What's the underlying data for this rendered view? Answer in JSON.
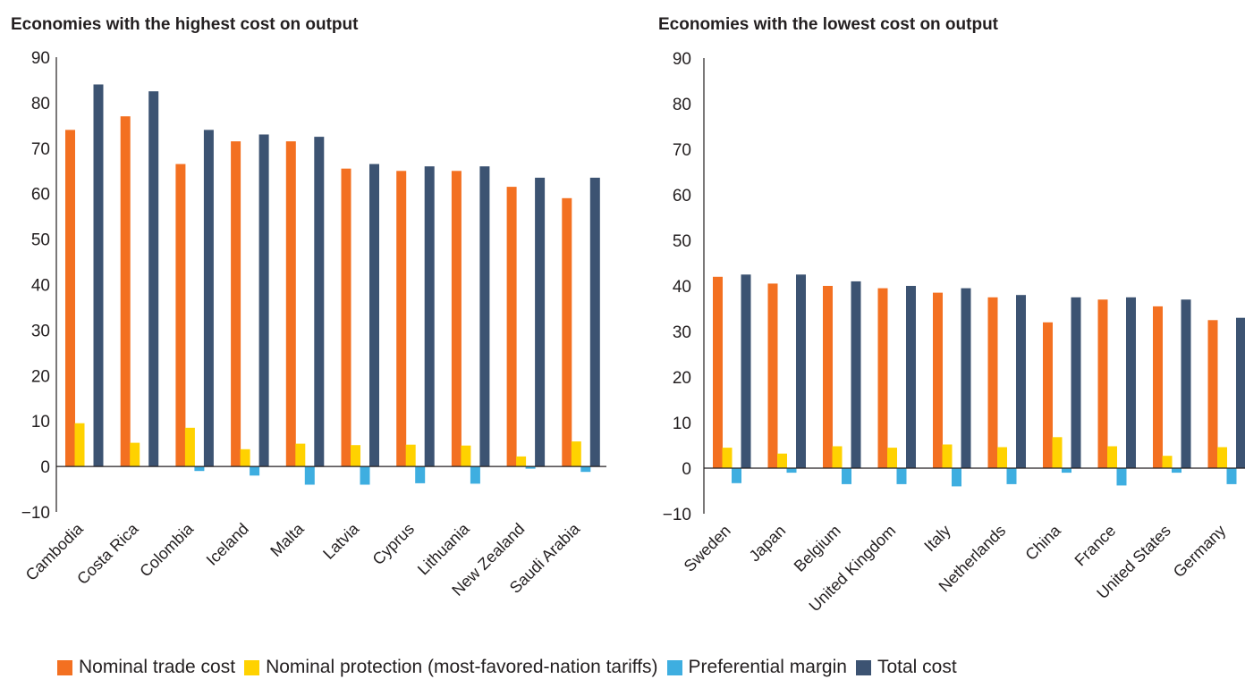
{
  "legend": [
    {
      "label": "Nominal trade cost",
      "color": "#f37021"
    },
    {
      "label": "Nominal protection (most-favored-nation tariffs)",
      "color": "#ffd200"
    },
    {
      "label": "Preferential margin",
      "color": "#3eaee0"
    },
    {
      "label": "Total cost",
      "color": "#3c5372"
    }
  ],
  "chart_data": [
    {
      "type": "bar",
      "title": "Economies with the highest cost on output",
      "xlabel": "",
      "ylabel": "",
      "ylim": [
        -10,
        90
      ],
      "yticks": [
        90,
        80,
        70,
        60,
        50,
        40,
        30,
        20,
        10,
        0,
        -10
      ],
      "ytick_labels": [
        "90",
        "80",
        "70",
        "60",
        "50",
        "40",
        "30",
        "20",
        "10",
        "0",
        "−10"
      ],
      "grid": false,
      "legend_position": "bottom",
      "categories": [
        "Cambodia",
        "Costa Rica",
        "Colombia",
        "Iceland",
        "Malta",
        "Latvia",
        "Cyprus",
        "Lithuania",
        "New Zealand",
        "Saudi Arabia"
      ],
      "series": [
        {
          "name": "Nominal trade cost",
          "color": "#f37021",
          "values": [
            74,
            77,
            66.5,
            71.5,
            71.5,
            65.5,
            65,
            65,
            61.5,
            59
          ]
        },
        {
          "name": "Nominal protection (most-favored-nation tariffs)",
          "color": "#ffd200",
          "values": [
            9.5,
            5.2,
            8.5,
            3.8,
            5,
            4.7,
            4.8,
            4.6,
            2.2,
            5.5
          ]
        },
        {
          "name": "Preferential margin",
          "color": "#3eaee0",
          "values": [
            0,
            0,
            -1,
            -2,
            -4,
            -4,
            -3.7,
            -3.8,
            -0.5,
            -1.2
          ]
        },
        {
          "name": "Total cost",
          "color": "#3c5372",
          "values": [
            84,
            82.5,
            74,
            73,
            72.5,
            66.5,
            66,
            66,
            63.5,
            63.5
          ]
        }
      ]
    },
    {
      "type": "bar",
      "title": "Economies with the lowest cost on output",
      "xlabel": "",
      "ylabel": "",
      "ylim": [
        -10,
        90
      ],
      "yticks": [
        90,
        80,
        70,
        60,
        50,
        40,
        30,
        20,
        10,
        0,
        -10
      ],
      "ytick_labels": [
        "90",
        "80",
        "70",
        "60",
        "50",
        "40",
        "30",
        "20",
        "10",
        "0",
        "−10"
      ],
      "grid": false,
      "legend_position": "bottom",
      "categories": [
        "Sweden",
        "Japan",
        "Belgium",
        "United Kingdom",
        "Italy",
        "Netherlands",
        "China",
        "France",
        "United States",
        "Germany"
      ],
      "series": [
        {
          "name": "Nominal trade cost",
          "color": "#f37021",
          "values": [
            42,
            40.5,
            40,
            39.5,
            38.5,
            37.5,
            32,
            37,
            35.5,
            32.5
          ]
        },
        {
          "name": "Nominal protection (most-favored-nation tariffs)",
          "color": "#ffd200",
          "values": [
            4.5,
            3.2,
            4.8,
            4.5,
            5.2,
            4.6,
            6.8,
            4.8,
            2.7,
            4.6
          ]
        },
        {
          "name": "Preferential margin",
          "color": "#3eaee0",
          "values": [
            -3.3,
            -1,
            -3.5,
            -3.5,
            -4,
            -3.5,
            -1,
            -3.8,
            -1,
            -3.5
          ]
        },
        {
          "name": "Total cost",
          "color": "#3c5372",
          "values": [
            42.5,
            42.5,
            41,
            40,
            39.5,
            38,
            37.5,
            37.5,
            37,
            33
          ]
        }
      ]
    }
  ]
}
